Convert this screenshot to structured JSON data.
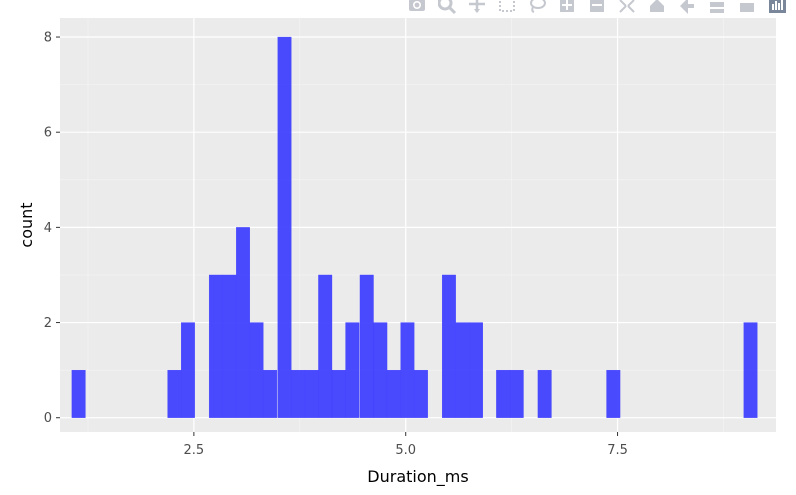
{
  "modebar": {
    "buttons": [
      {
        "name": "camera-icon"
      },
      {
        "name": "zoom-icon"
      },
      {
        "name": "pan-icon"
      },
      {
        "name": "box-select-icon"
      },
      {
        "name": "lasso-select-icon"
      },
      {
        "name": "zoom-in-icon"
      },
      {
        "name": "zoom-out-icon"
      },
      {
        "name": "autoscale-icon"
      },
      {
        "name": "reset-axes-icon"
      },
      {
        "name": "spike-lines-icon"
      },
      {
        "name": "hover-closest-icon"
      },
      {
        "name": "hover-compare-icon"
      },
      {
        "name": "plotly-logo-icon"
      }
    ]
  },
  "chart_data": {
    "type": "bar",
    "subtype": "histogram",
    "xlabel": "Duration_ms",
    "ylabel": "count",
    "xlim": [
      0.92,
      9.37
    ],
    "ylim": [
      -0.3,
      8.4
    ],
    "x_ticks": [
      2.5,
      5.0,
      7.5
    ],
    "x_tick_labels": [
      "2.5",
      "5.0",
      "7.5"
    ],
    "y_ticks": [
      0,
      2,
      4,
      6,
      8
    ],
    "y_tick_labels": [
      "0",
      "2",
      "4",
      "6",
      "8"
    ],
    "bin_width": 0.16,
    "bins": [
      {
        "x": 1.14,
        "count": 1
      },
      {
        "x": 2.27,
        "count": 1
      },
      {
        "x": 2.43,
        "count": 2
      },
      {
        "x": 2.76,
        "count": 3
      },
      {
        "x": 2.92,
        "count": 3
      },
      {
        "x": 3.08,
        "count": 4
      },
      {
        "x": 3.24,
        "count": 2
      },
      {
        "x": 3.4,
        "count": 1
      },
      {
        "x": 3.57,
        "count": 8
      },
      {
        "x": 3.73,
        "count": 1
      },
      {
        "x": 3.89,
        "count": 1
      },
      {
        "x": 4.05,
        "count": 3
      },
      {
        "x": 4.21,
        "count": 1
      },
      {
        "x": 4.37,
        "count": 2
      },
      {
        "x": 4.54,
        "count": 3
      },
      {
        "x": 4.7,
        "count": 2
      },
      {
        "x": 4.86,
        "count": 1
      },
      {
        "x": 5.02,
        "count": 2
      },
      {
        "x": 5.18,
        "count": 1
      },
      {
        "x": 5.51,
        "count": 3
      },
      {
        "x": 5.67,
        "count": 2
      },
      {
        "x": 5.83,
        "count": 2
      },
      {
        "x": 6.15,
        "count": 1
      },
      {
        "x": 6.31,
        "count": 1
      },
      {
        "x": 6.64,
        "count": 1
      },
      {
        "x": 7.45,
        "count": 1
      },
      {
        "x": 9.07,
        "count": 2
      }
    ],
    "bar_color": "#4040ff",
    "panel_color": "#ebebeb",
    "grid": true,
    "legend": "none"
  }
}
